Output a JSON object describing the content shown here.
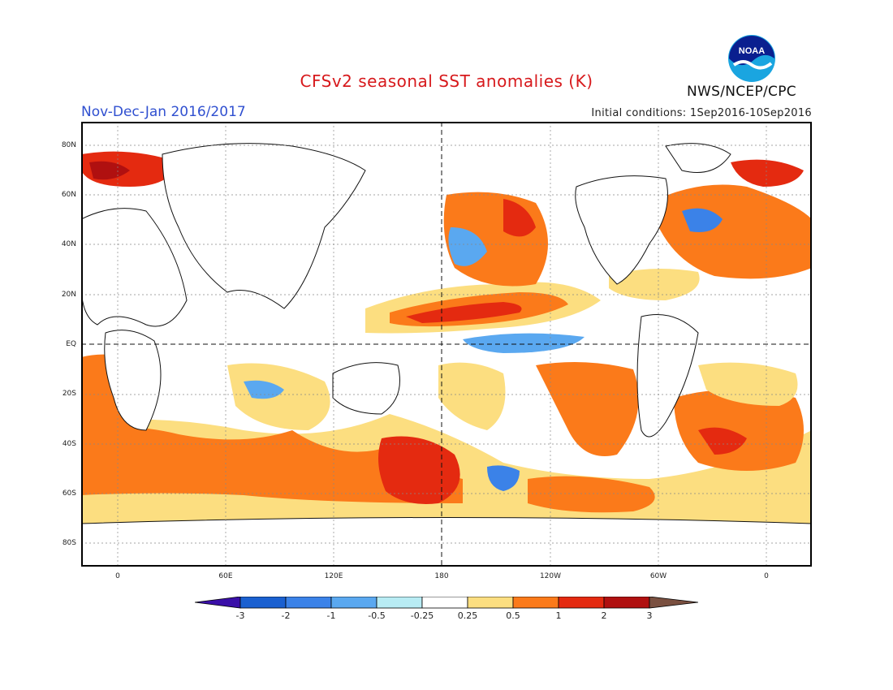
{
  "header": {
    "title": "CFSv2 seasonal SST anomalies (K)",
    "season": "Nov-Dec-Jan 2016/2017",
    "initial_conditions": "Initial conditions: 1Sep2016-10Sep2016",
    "agency": "NWS/NCEP/CPC",
    "logo_text": "NOAA"
  },
  "map": {
    "lat_labels": [
      "80N",
      "60N",
      "40N",
      "20N",
      "EQ",
      "20S",
      "40S",
      "60S",
      "80S"
    ],
    "lon_labels": [
      "0",
      "60E",
      "120E",
      "180",
      "120W",
      "60W",
      "0"
    ]
  },
  "colorbar": {
    "levels": [
      "-3",
      "-2",
      "-1",
      "-0.5",
      "-0.25",
      "0.25",
      "0.5",
      "1",
      "2",
      "3"
    ],
    "colors": [
      "#3a0fa8",
      "#1a60d0",
      "#3b82e8",
      "#5aa8f0",
      "#b8ecf4",
      "#ffffff",
      "#fcde80",
      "#fb7a1a",
      "#e42a10",
      "#b01010",
      "#7a5040"
    ]
  }
}
